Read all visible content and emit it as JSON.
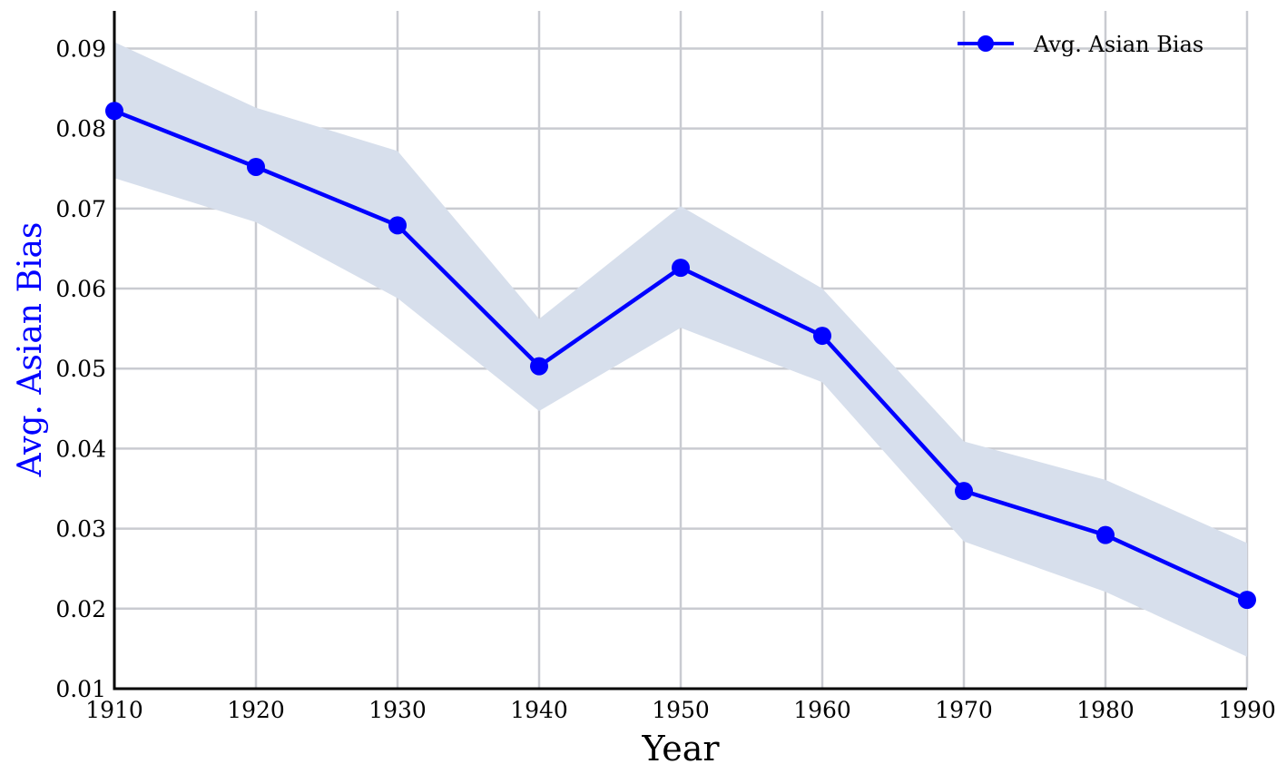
{
  "chart_data": {
    "type": "line",
    "title": "",
    "xlabel": "Year",
    "ylabel": "Avg. Asian Bias",
    "x": [
      1910,
      1920,
      1930,
      1940,
      1950,
      1960,
      1970,
      1980,
      1990
    ],
    "xticks": [
      "1910",
      "1920",
      "1930",
      "1940",
      "1950",
      "1960",
      "1970",
      "1980",
      "1990"
    ],
    "yticks": [
      "0.01",
      "0.02",
      "0.03",
      "0.04",
      "0.05",
      "0.06",
      "0.07",
      "0.08",
      "0.09"
    ],
    "xlim": [
      1910,
      1990
    ],
    "ylim": [
      0.01,
      0.0947
    ],
    "grid": true,
    "legend_position": "top-right",
    "series": [
      {
        "name": "Avg. Asian Bias",
        "color": "#0000ff",
        "values": [
          0.0822,
          0.0752,
          0.0679,
          0.0503,
          0.0626,
          0.0541,
          0.0347,
          0.0292,
          0.0211
        ],
        "ci_lower": [
          0.0738,
          0.0683,
          0.0588,
          0.0447,
          0.0551,
          0.0483,
          0.0284,
          0.0221,
          0.014
        ],
        "ci_upper": [
          0.0908,
          0.0826,
          0.0772,
          0.0562,
          0.0703,
          0.06,
          0.0409,
          0.0361,
          0.0282
        ],
        "band_color": "#d7dfec"
      }
    ],
    "colors": {
      "grid": "#c9cbd1",
      "axis": "#000000",
      "ylabel": "#0000ff"
    }
  }
}
